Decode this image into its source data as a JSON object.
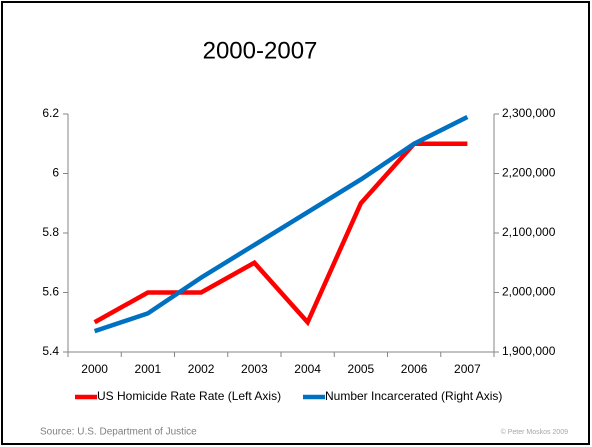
{
  "chart_data": {
    "type": "line",
    "title": "2000-2007",
    "categories": [
      "2000",
      "2001",
      "2002",
      "2003",
      "2004",
      "2005",
      "2006",
      "2007"
    ],
    "series": [
      {
        "name": "US Homicide Rate Rate (Left Axis)",
        "color": "#ff0000",
        "axis": "y",
        "values": [
          5.5,
          5.6,
          5.6,
          5.7,
          5.5,
          5.9,
          6.1,
          6.1
        ]
      },
      {
        "name": "Number Incarcerated (Right Axis)",
        "color": "#0070c0",
        "axis": "y2",
        "values": [
          1935000,
          1965000,
          2025000,
          2080000,
          2135000,
          2190000,
          2250000,
          2295000
        ]
      }
    ],
    "ylim": [
      5.4,
      6.2
    ],
    "yticks": [
      5.4,
      5.6,
      5.8,
      6,
      6.2
    ],
    "y2lim": [
      1900000,
      2300000
    ],
    "y2ticks": [
      {
        "value": 1900000,
        "label": "1,900,000"
      },
      {
        "value": 2000000,
        "label": "2,000,000"
      },
      {
        "value": 2100000,
        "label": "2,100,000"
      },
      {
        "value": 2200000,
        "label": "2,200,000"
      },
      {
        "value": 2300000,
        "label": "2,300,000"
      }
    ],
    "legend": "bottom",
    "source": "Source: U.S. Department of Justice",
    "credit": "© Peter Moskos 2009"
  }
}
